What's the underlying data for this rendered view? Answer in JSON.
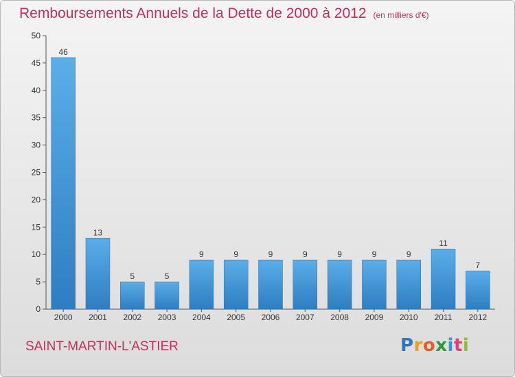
{
  "chart_data": {
    "type": "bar",
    "title": "Remboursements Annuels de la Dette de 2000 à 2012",
    "subtitle": "(en milliers d'€)",
    "categories": [
      "2000",
      "2001",
      "2002",
      "2003",
      "2004",
      "2005",
      "2006",
      "2007",
      "2008",
      "2009",
      "2010",
      "2011",
      "2012"
    ],
    "values": [
      46,
      13,
      5,
      5,
      9,
      9,
      9,
      9,
      9,
      9,
      9,
      11,
      7
    ],
    "ylim": [
      0,
      50
    ],
    "yticks": [
      0,
      5,
      10,
      15,
      20,
      25,
      30,
      35,
      40,
      45,
      50
    ],
    "grid": false,
    "bar_color": "#3d91d6",
    "title_color": "#c0305a"
  },
  "footer": {
    "commune": "SAINT-MARTIN-L'ASTIER",
    "logo": {
      "p": "P",
      "r": "r",
      "o": "o",
      "x": "x",
      "i1": "i",
      "t": "t",
      "i2": "i"
    }
  }
}
